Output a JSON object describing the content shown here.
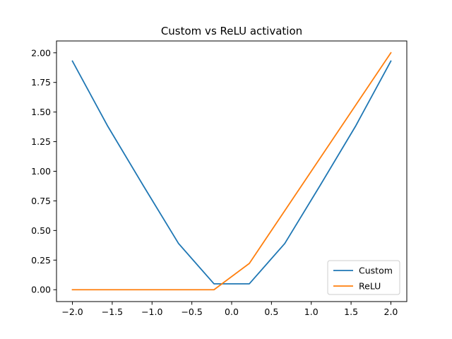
{
  "chart_data": {
    "type": "line",
    "title": "Custom vs ReLU activation",
    "xlabel": "",
    "ylabel": "",
    "xlim": [
      -2.2,
      2.2
    ],
    "ylim": [
      -0.1,
      2.1
    ],
    "xticks": [
      -2.0,
      -1.5,
      -1.0,
      -0.5,
      0.0,
      0.5,
      1.0,
      1.5,
      2.0
    ],
    "xtick_labels": [
      "−2.0",
      "−1.5",
      "−1.0",
      "−0.5",
      "0.0",
      "0.5",
      "1.0",
      "1.5",
      "2.0"
    ],
    "yticks": [
      0.0,
      0.25,
      0.5,
      0.75,
      1.0,
      1.25,
      1.5,
      1.75,
      2.0
    ],
    "ytick_labels": [
      "0.00",
      "0.25",
      "0.50",
      "0.75",
      "1.00",
      "1.25",
      "1.50",
      "1.75",
      "2.00"
    ],
    "grid": false,
    "legend_position": "lower-right",
    "series": [
      {
        "name": "Custom",
        "color": "#1f77b4",
        "x": [
          -2.0,
          -1.556,
          -1.111,
          -0.667,
          -0.222,
          0.222,
          0.667,
          1.111,
          1.556,
          2.0
        ],
        "y": [
          1.93,
          1.38,
          0.88,
          0.39,
          0.05,
          0.05,
          0.39,
          0.88,
          1.38,
          1.93
        ]
      },
      {
        "name": "ReLU",
        "color": "#ff7f0e",
        "x": [
          -2.0,
          -1.556,
          -1.111,
          -0.667,
          -0.222,
          0.222,
          0.667,
          1.111,
          1.556,
          2.0
        ],
        "y": [
          0.0,
          0.0,
          0.0,
          0.0,
          0.0,
          0.222,
          0.667,
          1.111,
          1.556,
          2.0
        ]
      }
    ]
  }
}
